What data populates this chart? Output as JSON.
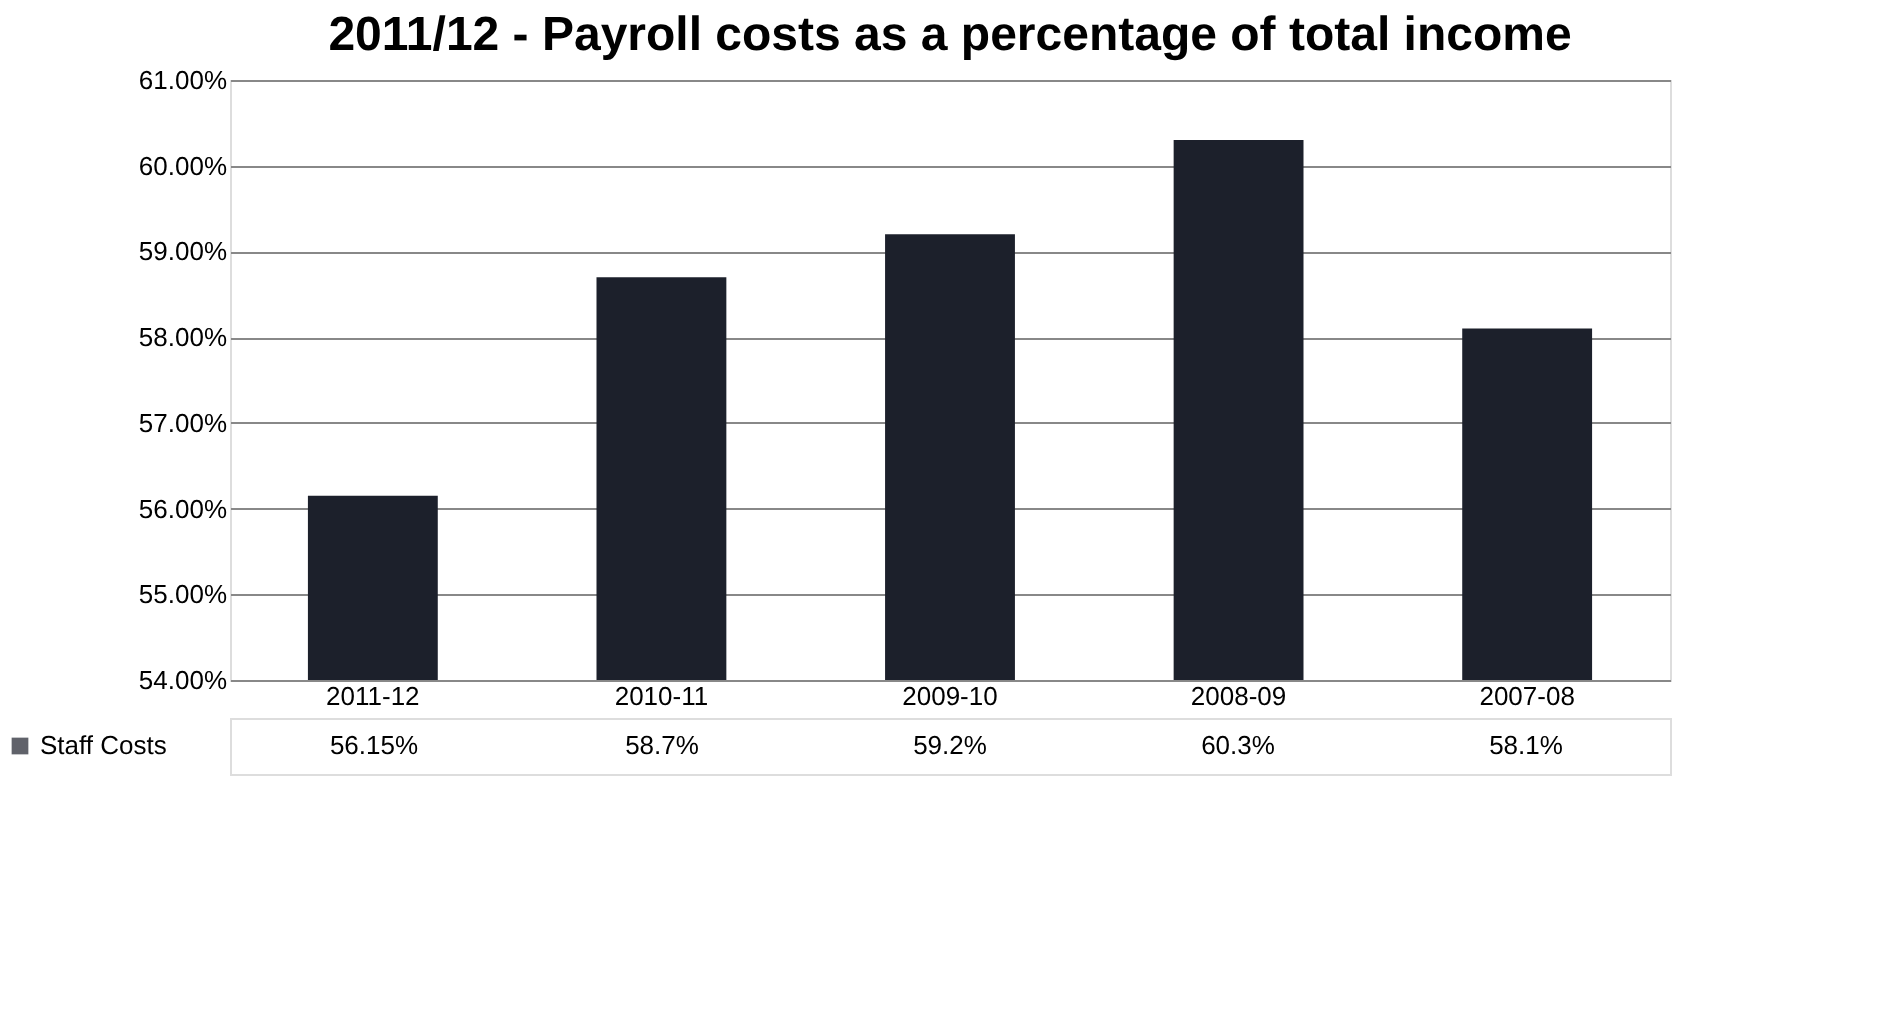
{
  "chart_data": {
    "type": "bar",
    "title": "2011/12 - Payroll costs as a percentage of total income",
    "categories": [
      "2011-12",
      "2010-11",
      "2009-10",
      "2008-09",
      "2007-08"
    ],
    "series": [
      {
        "name": "Staff Costs",
        "color": "#1c202b",
        "values": [
          56.15,
          58.7,
          59.2,
          60.3,
          58.1
        ],
        "value_labels": [
          "56.15%",
          "58.7%",
          "59.2%",
          "60.3%",
          "58.1%"
        ]
      }
    ],
    "ylim": [
      54,
      61
    ],
    "yticks": [
      {
        "value": 54,
        "label": "54.00%"
      },
      {
        "value": 55,
        "label": "55.00%"
      },
      {
        "value": 56,
        "label": "56.00%"
      },
      {
        "value": 57,
        "label": "57.00%"
      },
      {
        "value": 58,
        "label": "58.00%"
      },
      {
        "value": 59,
        "label": "59.00%"
      },
      {
        "value": 60,
        "label": "60.00%"
      },
      {
        "value": 61,
        "label": "61.00%"
      }
    ],
    "grid": "y"
  }
}
